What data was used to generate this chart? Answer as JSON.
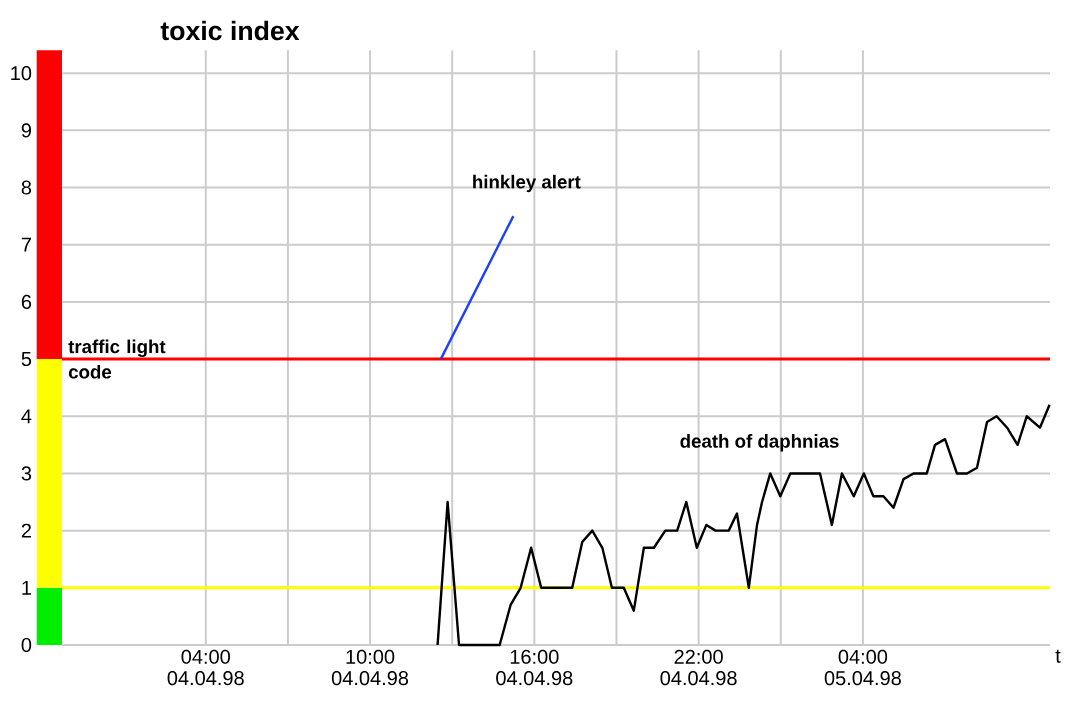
{
  "chart_data": {
    "type": "line",
    "ylabel": "toxic index",
    "xlabel": "t",
    "xlim": [
      "1998-04-03T22:45",
      "1998-04-05T10:50"
    ],
    "xticks": [
      {
        "value": "1998-04-04T04:00",
        "label": "04:00 04.04.98"
      },
      {
        "value": "1998-04-04T10:00",
        "label": "10:00 04.04.98"
      },
      {
        "value": "1998-04-04T16:00",
        "label": "16:00 04.04.98"
      },
      {
        "value": "1998-04-04T22:00",
        "label": "22:00 04.04.98"
      },
      {
        "value": "1998-04-05T04:00",
        "label": "04:00 05.04.98"
      }
    ],
    "ylim": [
      0,
      10.4
    ],
    "yticks": [
      0,
      1,
      2,
      3,
      4,
      5,
      6,
      7,
      8,
      9,
      10
    ],
    "grid": true,
    "series": [
      {
        "color": "#000000",
        "x": [
          "1998-04-04T12:28",
          "1998-04-04T12:50",
          "1998-04-04T13:15",
          "1998-04-04T14:44",
          "1998-04-04T15:08",
          "1998-04-04T15:30",
          "1998-04-04T15:53",
          "1998-04-04T16:15",
          "1998-04-04T17:23",
          "1998-04-04T17:45",
          "1998-04-04T18:07",
          "1998-04-04T18:29",
          "1998-04-04T18:50",
          "1998-04-04T19:16",
          "1998-04-04T19:38",
          "1998-04-04T20:00",
          "1998-04-04T20:22",
          "1998-04-04T20:47",
          "1998-04-04T21:13",
          "1998-04-04T21:33",
          "1998-04-04T21:56",
          "1998-04-04T22:17",
          "1998-04-04T22:37",
          "1998-04-04T23:06",
          "1998-04-04T23:24",
          "1998-04-04T23:50",
          "1998-04-05T00:08",
          "1998-04-05T00:19",
          "1998-04-05T00:37",
          "1998-04-05T00:59",
          "1998-04-05T01:21",
          "1998-04-05T02:26",
          "1998-04-05T02:52",
          "1998-04-05T03:14",
          "1998-04-05T03:40",
          "1998-04-05T04:02",
          "1998-04-05T04:23",
          "1998-04-05T04:45",
          "1998-04-05T05:07",
          "1998-04-05T05:29",
          "1998-04-05T05:51",
          "1998-04-05T06:20",
          "1998-04-05T06:38",
          "1998-04-05T07:00",
          "1998-04-05T07:26",
          "1998-04-05T07:48",
          "1998-04-05T08:10",
          "1998-04-05T08:32",
          "1998-04-05T08:53",
          "1998-04-05T09:16",
          "1998-04-05T09:39",
          "1998-04-05T09:59",
          "1998-04-05T10:28",
          "1998-04-05T10:49"
        ],
        "values": [
          0,
          2.5,
          0,
          0,
          0.7,
          1.0,
          1.7,
          1.0,
          1.0,
          1.8,
          2.0,
          1.7,
          1.0,
          1.0,
          0.6,
          1.7,
          1.7,
          2.0,
          2.0,
          2.5,
          1.7,
          2.1,
          2.0,
          2.0,
          2.3,
          1.0,
          2.1,
          2.5,
          3.0,
          2.6,
          3.0,
          3.0,
          2.1,
          3.0,
          2.6,
          3.0,
          2.6,
          2.6,
          2.4,
          2.9,
          3.0,
          3.0,
          3.5,
          3.6,
          3.0,
          3.0,
          3.1,
          3.9,
          4.0,
          3.8,
          3.5,
          4.0,
          3.8,
          4.2
        ]
      },
      {
        "color": "#1f3fff",
        "x": [
          "1998-04-04T12:35",
          "1998-04-04T15:14"
        ],
        "values": [
          5,
          7.5
        ]
      }
    ],
    "ref_lines": [
      {
        "axis": "y",
        "value": 5,
        "color": "#ff0000"
      },
      {
        "axis": "y",
        "value": 1,
        "color": "#ffff00"
      }
    ],
    "annotations": [
      "hinkley alert",
      "death of daphnias",
      {
        "text": "traffic light code",
        "x": "1998-04-03T22:55",
        "y": 5
      }
    ]
  }
}
